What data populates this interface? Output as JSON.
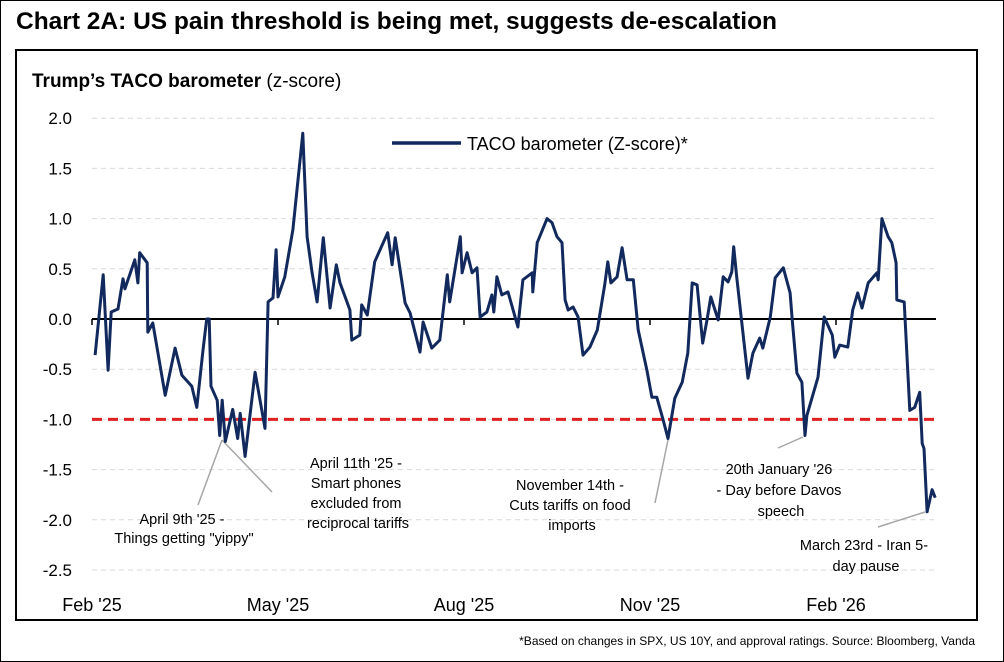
{
  "chart_data": {
    "type": "line",
    "title": "Chart 2A: US pain threshold is being met, suggests de-escalation",
    "subtitle_bold": "Trump’s TACO barometer",
    "subtitle_rest": " (z-score)",
    "x_unit": "months since Feb 2025",
    "xlim": [
      0,
      13.6
    ],
    "ylim": [
      -2.5,
      2.0
    ],
    "yticks": [
      2.0,
      1.5,
      1.0,
      0.5,
      0.0,
      -0.5,
      -1.0,
      -1.5,
      -2.0,
      -2.5
    ],
    "ytick_labels": [
      "2.0",
      "1.5",
      "1.0",
      "0.5",
      "0.0",
      "-0.5",
      "-1.0",
      "-1.5",
      "-2.0",
      "-2.5"
    ],
    "xticks": [
      0,
      3,
      6,
      9,
      12
    ],
    "xtick_labels": [
      "Feb '25",
      "May '25",
      "Aug '25",
      "Nov '25",
      "Feb '26"
    ],
    "grid": true,
    "legend_position": "top-center",
    "threshold": {
      "value": -1.0,
      "color": "#e02020",
      "style": "dashed"
    },
    "series": [
      {
        "name": "TACO barometer (Z-score)*",
        "color": "#12295e",
        "points": [
          [
            0.05,
            -0.36
          ],
          [
            0.18,
            0.44
          ],
          [
            0.26,
            -0.51
          ],
          [
            0.31,
            0.07
          ],
          [
            0.42,
            0.1
          ],
          [
            0.5,
            0.4
          ],
          [
            0.53,
            0.3
          ],
          [
            0.69,
            0.59
          ],
          [
            0.74,
            0.36
          ],
          [
            0.77,
            0.66
          ],
          [
            0.89,
            0.56
          ],
          [
            0.9,
            -0.13
          ],
          [
            0.98,
            -0.04
          ],
          [
            1.18,
            -0.76
          ],
          [
            1.34,
            -0.29
          ],
          [
            1.45,
            -0.56
          ],
          [
            1.61,
            -0.67
          ],
          [
            1.69,
            -0.88
          ],
          [
            1.79,
            -0.31
          ],
          [
            1.85,
            0.0
          ],
          [
            1.89,
            0.0
          ],
          [
            1.92,
            -0.67
          ],
          [
            2.02,
            -0.81
          ],
          [
            2.06,
            -1.16
          ],
          [
            2.1,
            -0.81
          ],
          [
            2.15,
            -1.22
          ],
          [
            2.27,
            -0.9
          ],
          [
            2.35,
            -1.19
          ],
          [
            2.39,
            -0.94
          ],
          [
            2.47,
            -1.37
          ],
          [
            2.63,
            -0.53
          ],
          [
            2.79,
            -1.09
          ],
          [
            2.84,
            0.17
          ],
          [
            2.92,
            0.21
          ],
          [
            2.97,
            0.69
          ],
          [
            3.0,
            0.22
          ],
          [
            3.11,
            0.42
          ],
          [
            3.24,
            0.89
          ],
          [
            3.4,
            1.85
          ],
          [
            3.47,
            0.82
          ],
          [
            3.55,
            0.46
          ],
          [
            3.63,
            0.17
          ],
          [
            3.73,
            0.81
          ],
          [
            3.84,
            0.11
          ],
          [
            3.94,
            0.54
          ],
          [
            4.0,
            0.36
          ],
          [
            4.16,
            0.09
          ],
          [
            4.19,
            -0.21
          ],
          [
            4.32,
            -0.16
          ],
          [
            4.35,
            0.14
          ],
          [
            4.44,
            0.04
          ],
          [
            4.56,
            0.57
          ],
          [
            4.77,
            0.86
          ],
          [
            4.84,
            0.54
          ],
          [
            4.89,
            0.81
          ],
          [
            5.05,
            0.16
          ],
          [
            5.13,
            0.06
          ],
          [
            5.29,
            -0.33
          ],
          [
            5.34,
            -0.03
          ],
          [
            5.48,
            -0.29
          ],
          [
            5.61,
            -0.21
          ],
          [
            5.73,
            0.44
          ],
          [
            5.77,
            0.17
          ],
          [
            5.94,
            0.82
          ],
          [
            5.97,
            0.46
          ],
          [
            6.05,
            0.66
          ],
          [
            6.13,
            0.46
          ],
          [
            6.21,
            0.51
          ],
          [
            6.26,
            0.02
          ],
          [
            6.37,
            0.07
          ],
          [
            6.45,
            0.24
          ],
          [
            6.48,
            0.07
          ],
          [
            6.53,
            0.42
          ],
          [
            6.61,
            0.24
          ],
          [
            6.71,
            0.27
          ],
          [
            6.87,
            -0.08
          ],
          [
            6.95,
            0.39
          ],
          [
            7.1,
            0.46
          ],
          [
            7.11,
            0.27
          ],
          [
            7.18,
            0.76
          ],
          [
            7.34,
            1.0
          ],
          [
            7.42,
            0.96
          ],
          [
            7.5,
            0.82
          ],
          [
            7.58,
            0.76
          ],
          [
            7.63,
            0.19
          ],
          [
            7.68,
            0.09
          ],
          [
            7.76,
            0.12
          ],
          [
            7.84,
            0.02
          ],
          [
            7.92,
            -0.36
          ],
          [
            8.03,
            -0.28
          ],
          [
            8.15,
            -0.11
          ],
          [
            8.27,
            0.34
          ],
          [
            8.32,
            0.57
          ],
          [
            8.37,
            0.36
          ],
          [
            8.47,
            0.42
          ],
          [
            8.55,
            0.71
          ],
          [
            8.63,
            0.39
          ],
          [
            8.73,
            0.39
          ],
          [
            8.81,
            -0.11
          ],
          [
            8.95,
            -0.51
          ],
          [
            9.03,
            -0.78
          ],
          [
            9.11,
            -0.78
          ],
          [
            9.21,
            -1.0
          ],
          [
            9.29,
            -1.19
          ],
          [
            9.4,
            -0.79
          ],
          [
            9.52,
            -0.63
          ],
          [
            9.61,
            -0.34
          ],
          [
            9.68,
            0.36
          ],
          [
            9.76,
            0.34
          ],
          [
            9.85,
            -0.24
          ],
          [
            9.92,
            -0.01
          ],
          [
            9.98,
            0.22
          ],
          [
            10.1,
            -0.01
          ],
          [
            10.18,
            0.42
          ],
          [
            10.26,
            0.37
          ],
          [
            10.32,
            0.47
          ],
          [
            10.35,
            0.72
          ],
          [
            10.4,
            0.41
          ],
          [
            10.58,
            -0.59
          ],
          [
            10.66,
            -0.34
          ],
          [
            10.77,
            -0.19
          ],
          [
            10.82,
            -0.29
          ],
          [
            10.94,
            0.02
          ],
          [
            11.02,
            0.41
          ],
          [
            11.15,
            0.51
          ],
          [
            11.26,
            0.26
          ],
          [
            11.29,
            0.02
          ],
          [
            11.37,
            -0.54
          ],
          [
            11.45,
            -0.63
          ],
          [
            11.5,
            -1.16
          ],
          [
            11.53,
            -0.96
          ],
          [
            11.71,
            -0.58
          ],
          [
            11.81,
            0.02
          ],
          [
            11.94,
            -0.16
          ],
          [
            11.98,
            -0.38
          ],
          [
            12.06,
            -0.26
          ],
          [
            12.19,
            -0.28
          ],
          [
            12.27,
            0.09
          ],
          [
            12.35,
            0.26
          ],
          [
            12.42,
            0.11
          ],
          [
            12.52,
            0.36
          ],
          [
            12.66,
            0.46
          ],
          [
            12.68,
            0.39
          ],
          [
            12.74,
            1.0
          ],
          [
            12.84,
            0.82
          ],
          [
            12.9,
            0.76
          ],
          [
            12.97,
            0.56
          ],
          [
            12.98,
            0.19
          ],
          [
            13.1,
            0.17
          ],
          [
            13.19,
            -0.91
          ],
          [
            13.27,
            -0.88
          ],
          [
            13.35,
            -0.73
          ],
          [
            13.39,
            -1.24
          ],
          [
            13.42,
            -1.29
          ],
          [
            13.47,
            -1.92
          ],
          [
            13.55,
            -1.7
          ],
          [
            13.6,
            -1.78
          ]
        ]
      }
    ],
    "annotations": [
      {
        "lines": [
          "April 9th '25 -",
          "Things getting \"yippy\""
        ]
      },
      {
        "lines": [
          "April 11th '25 -",
          "Smart phones",
          "excluded from",
          "reciprocal tariffs"
        ]
      },
      {
        "lines": [
          "November 14th -",
          "Cuts tariffs on food",
          "imports"
        ]
      },
      {
        "lines": [
          "20th January '26",
          "- Day before Davos",
          "speech"
        ]
      },
      {
        "lines": [
          "March 23rd - Iran 5-",
          "day pause"
        ]
      }
    ],
    "footnote": "*Based on changes in SPX, US 10Y, and approval ratings. Source: Bloomberg, Vanda"
  }
}
